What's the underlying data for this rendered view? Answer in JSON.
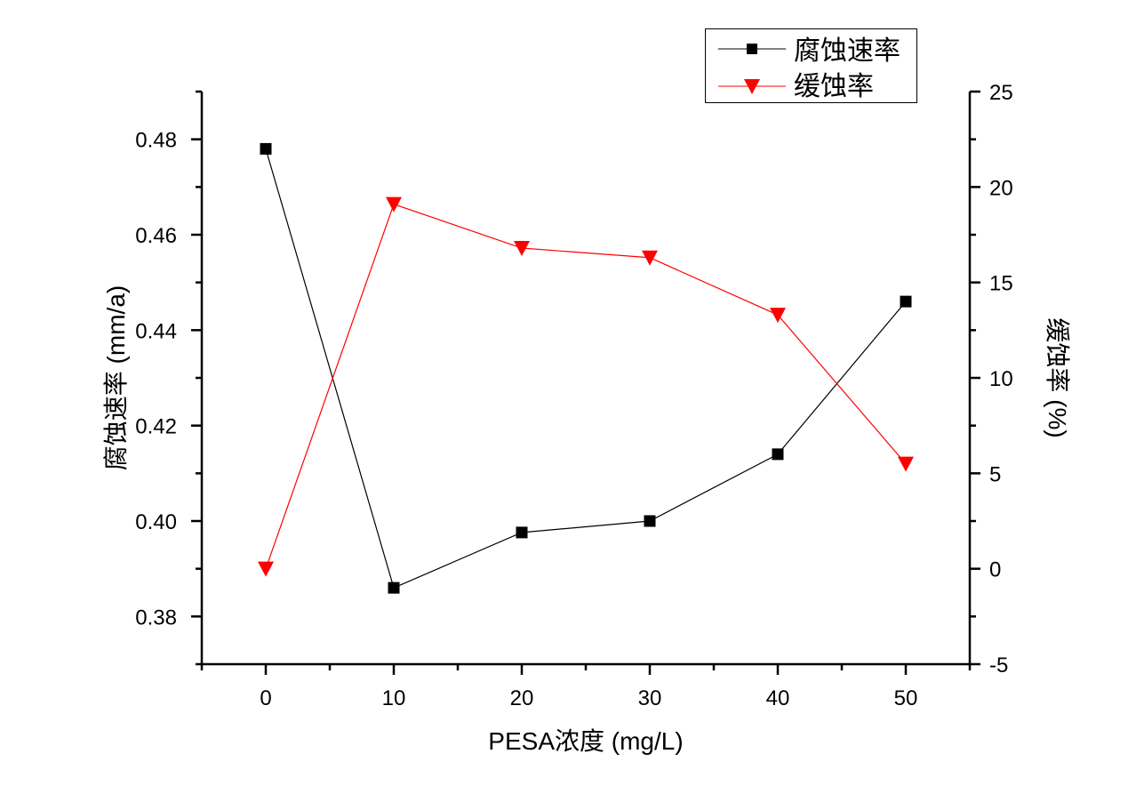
{
  "chart_data": {
    "type": "line",
    "x": [
      0,
      10,
      20,
      30,
      40,
      50
    ],
    "xlabel": "PESA浓度 (mg/L)",
    "xlim": [
      -5,
      55
    ],
    "xticks": [
      "0",
      "10",
      "20",
      "30",
      "40",
      "50"
    ],
    "ylabel": "腐蚀速率 (mm/a)",
    "ylim": [
      0.37,
      0.49
    ],
    "yticks": [
      "0.38",
      "0.40",
      "0.42",
      "0.44",
      "0.46",
      "0.48"
    ],
    "y2label": "缓蚀率 (%)",
    "y2lim": [
      -5,
      25
    ],
    "y2ticks": [
      "-5",
      "0",
      "5",
      "10",
      "15",
      "20",
      "25"
    ],
    "grid": false,
    "legend_position": "top-right",
    "series": [
      {
        "name": "腐蚀速率",
        "axis": "left",
        "marker": "square",
        "color": "#000000",
        "values": [
          0.478,
          0.386,
          0.3976,
          0.4,
          0.414,
          0.446
        ]
      },
      {
        "name": "缓蚀率",
        "axis": "right",
        "marker": "triangle-down",
        "color": "#ff0000",
        "values": [
          0.0,
          19.1,
          16.8,
          16.3,
          13.3,
          5.5
        ]
      }
    ]
  }
}
